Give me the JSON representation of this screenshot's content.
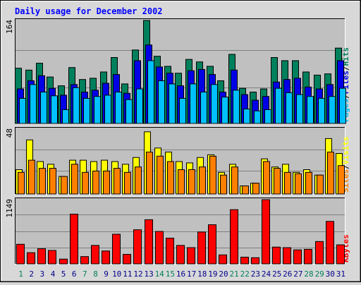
{
  "chart_data": {
    "type": "bar",
    "title": "Daily usage for December 2002",
    "colors": {
      "hits": "#00805c",
      "files": "#0000e6",
      "pages": "#00c0ff",
      "visits": "#ffff00",
      "sites": "#ff8000",
      "kbytes": "#ff0000",
      "weekend_label": "#00805c",
      "weekday_label": "#00008c",
      "title": "#0000ff",
      "panel": "#c0c0c0",
      "background": "#d8d8d8"
    },
    "days": [
      "1",
      "2",
      "3",
      "4",
      "5",
      "6",
      "7",
      "8",
      "9",
      "10",
      "11",
      "12",
      "13",
      "14",
      "15",
      "16",
      "17",
      "18",
      "19",
      "20",
      "21",
      "22",
      "23",
      "24",
      "25",
      "26",
      "27",
      "28",
      "29",
      "30",
      "31"
    ],
    "weekend_days": [
      "1",
      "7",
      "8",
      "14",
      "15",
      "21",
      "22",
      "28",
      "29"
    ],
    "panels": [
      {
        "max_label": "164",
        "ymax": 164,
        "legend": [
          {
            "key": "pages",
            "text": "Pages"
          },
          {
            "key": "sep",
            "text": "/"
          },
          {
            "key": "files",
            "text": "Files"
          },
          {
            "key": "sep",
            "text": "/"
          },
          {
            "key": "hits",
            "text": "Hits"
          }
        ],
        "series": [
          {
            "name": "Hits",
            "key": "hits",
            "values": [
              88,
              85,
              96,
              74,
              60,
              89,
              70,
              72,
              82,
              105,
              63,
              117,
              164,
              107,
              91,
              80,
              102,
              98,
              91,
              68,
              110,
              56,
              50,
              55,
              105,
              100,
              100,
              82,
              77,
              79,
              120
            ]
          },
          {
            "name": "Files",
            "key": "files",
            "values": [
              55,
              68,
              76,
              56,
              45,
              62,
              50,
              53,
              64,
              78,
              48,
              100,
              125,
              90,
              80,
              60,
              84,
              86,
              78,
              50,
              85,
              46,
              37,
              43,
              66,
              70,
              72,
              58,
              55,
              62,
              100
            ]
          },
          {
            "name": "Pages",
            "key": "pages",
            "values": [
              40,
              62,
              50,
              44,
              22,
              57,
              40,
              43,
              45,
              50,
              38,
              55,
              100,
              68,
              63,
              40,
              63,
              50,
              62,
              42,
              53,
              23,
              20,
              22,
              56,
              49,
              46,
              43,
              40,
              43,
              56
            ]
          }
        ]
      },
      {
        "max_label": "48",
        "ymax": 48,
        "legend": [
          {
            "key": "sites",
            "text": "Sites"
          },
          {
            "key": "sep",
            "text": "/"
          },
          {
            "key": "visits",
            "text": "Visits"
          }
        ],
        "series": [
          {
            "name": "Visits",
            "key": "visits",
            "values": [
              18,
              40,
              24,
              22,
              13,
              25,
              25,
              24,
              25,
              24,
              22,
              27,
              46,
              34,
              31,
              24,
              23,
              27,
              29,
              16,
              22,
              6,
              8,
              26,
              20,
              22,
              16,
              18,
              14,
              41,
              30
            ]
          },
          {
            "name": "Sites",
            "key": "sites",
            "values": [
              16,
              25,
              19,
              19,
              13,
              22,
              16,
              17,
              17,
              19,
              16,
              20,
              31,
              28,
              24,
              18,
              18,
              20,
              28,
              14,
              20,
              6,
              8,
              24,
              19,
              16,
              15,
              16,
              14,
              31,
              21
            ]
          }
        ]
      },
      {
        "max_label": "1149",
        "ymax": 1149,
        "legend": [
          {
            "key": "kbytes",
            "text": "KBytes"
          }
        ],
        "series": [
          {
            "name": "KBytes",
            "key": "kbytes",
            "values": [
              350,
              200,
              270,
              240,
              85,
              890,
              130,
              330,
              230,
              530,
              170,
              610,
              790,
              580,
              460,
              330,
              290,
              570,
              700,
              160,
              970,
              120,
              110,
              1149,
              300,
              290,
              250,
              260,
              400,
              760,
              340
            ]
          }
        ]
      }
    ]
  }
}
